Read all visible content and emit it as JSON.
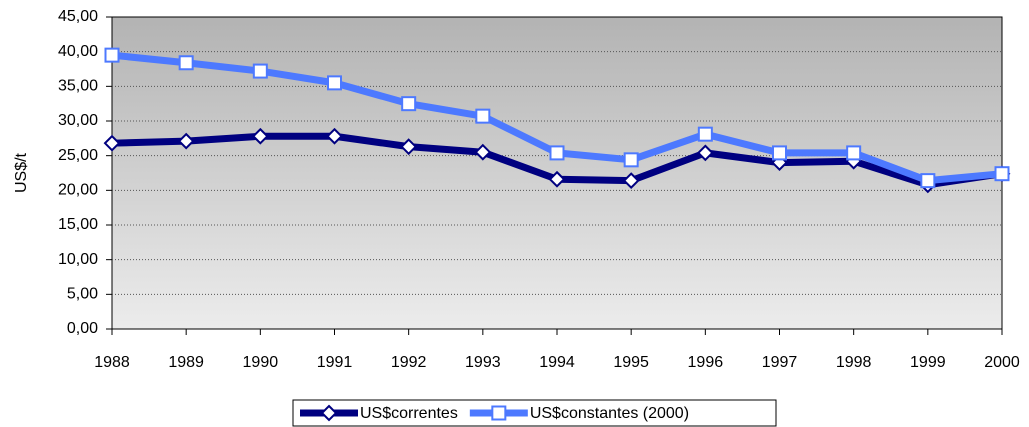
{
  "chart_data": {
    "type": "line",
    "y_label": "US$/t",
    "categories": [
      "1988",
      "1989",
      "1990",
      "1991",
      "1992",
      "1993",
      "1994",
      "1995",
      "1996",
      "1997",
      "1998",
      "1999",
      "2000"
    ],
    "series": [
      {
        "name": "US$correntes",
        "color": "#000080",
        "marker": "diamond",
        "values": [
          26.8,
          27.1,
          27.8,
          27.8,
          26.3,
          25.5,
          21.6,
          21.4,
          25.4,
          24.0,
          24.2,
          20.8,
          22.4
        ]
      },
      {
        "name": "US$constantes (2000)",
        "color": "#4d79ff",
        "marker": "square",
        "values": [
          39.5,
          38.4,
          37.2,
          35.5,
          32.5,
          30.7,
          25.4,
          24.4,
          28.1,
          25.4,
          25.4,
          21.4,
          22.4
        ]
      }
    ],
    "ylim": [
      0,
      45
    ],
    "yticks": [
      {
        "value": 0,
        "label": "0,00"
      },
      {
        "value": 5,
        "label": "5,00"
      },
      {
        "value": 10,
        "label": "10,00"
      },
      {
        "value": 15,
        "label": "15,00"
      },
      {
        "value": 20,
        "label": "20,00"
      },
      {
        "value": 25,
        "label": "25,00"
      },
      {
        "value": 30,
        "label": "30,00"
      },
      {
        "value": 35,
        "label": "35,00"
      },
      {
        "value": 40,
        "label": "40,00"
      },
      {
        "value": 45,
        "label": "45,00"
      }
    ],
    "grid": true,
    "legend": "bottom"
  }
}
